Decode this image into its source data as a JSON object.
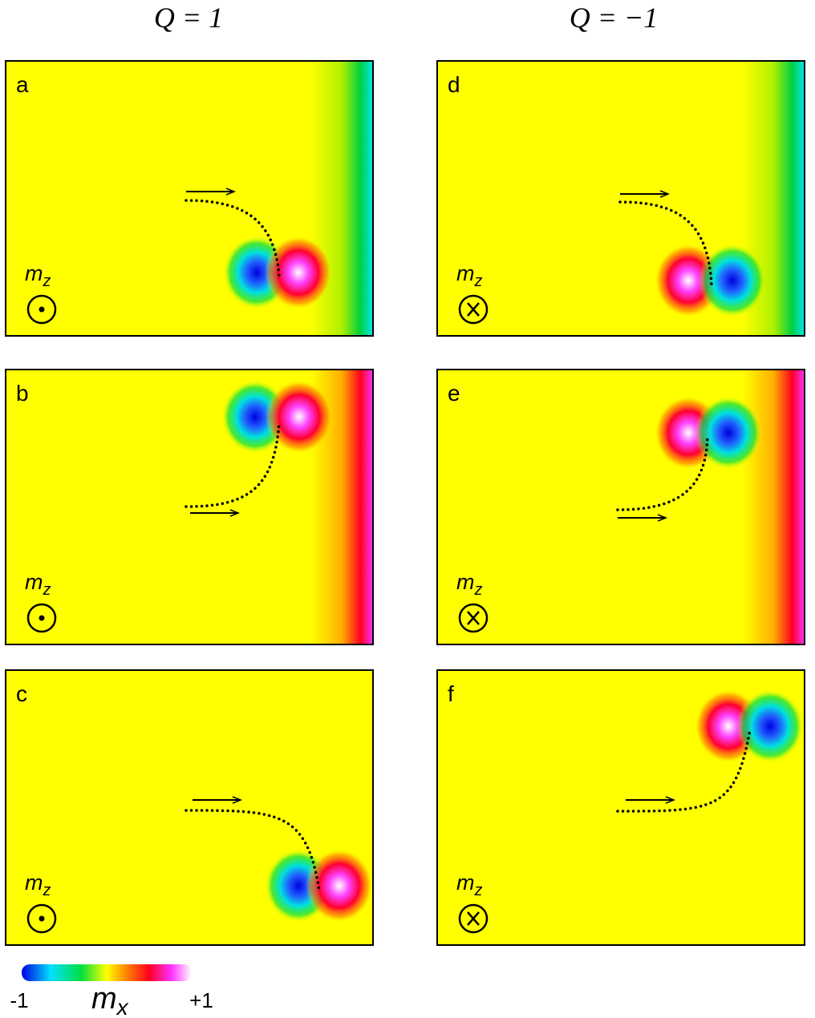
{
  "columns": [
    {
      "title": "Q = 1",
      "panels": [
        {
          "label": "a",
          "field": {
            "symbol": "m",
            "subscript": "z"
          }
        },
        {
          "label": "b",
          "field": {
            "symbol": "m",
            "subscript": "z"
          }
        },
        {
          "label": "c",
          "field": {
            "symbol": "m",
            "subscript": "z"
          }
        }
      ]
    },
    {
      "title": "Q = −1",
      "panels": [
        {
          "label": "d",
          "field": {
            "symbol": "m",
            "subscript": "z"
          }
        },
        {
          "label": "e",
          "field": {
            "symbol": "m",
            "subscript": "z"
          }
        },
        {
          "label": "f",
          "field": {
            "symbol": "m",
            "subscript": "z"
          }
        }
      ]
    }
  ],
  "colorbar": {
    "min_label": "-1",
    "symbol": "m",
    "subscript": "x",
    "max_label": "+1"
  }
}
